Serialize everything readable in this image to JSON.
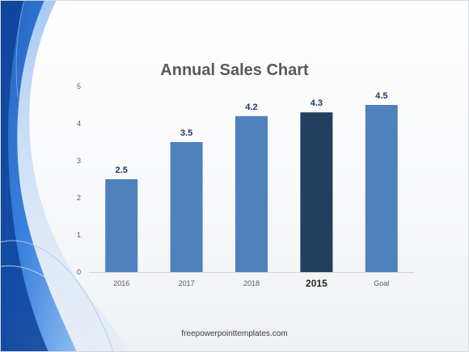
{
  "chart_data": {
    "type": "bar",
    "title": "Annual Sales Chart",
    "categories": [
      "2016",
      "2017",
      "2018",
      "2015",
      "Goal"
    ],
    "values": [
      2.5,
      3.5,
      4.2,
      4.3,
      4.5
    ],
    "value_labels": [
      "2.5",
      "3.5",
      "4.2",
      "4.3",
      "4.5"
    ],
    "highlight_index": 3,
    "ylim": [
      0,
      5
    ],
    "yticks": [
      "0",
      "1",
      "2",
      "3",
      "4",
      "5"
    ],
    "xlabel": "",
    "ylabel": "",
    "grid": false,
    "colors": {
      "bar": "#4f81bd",
      "highlight": "#243e5e",
      "value_label": "#1f3864",
      "tick": "#595959"
    }
  },
  "footer": {
    "text": "freepowerpointtemplates.com"
  }
}
